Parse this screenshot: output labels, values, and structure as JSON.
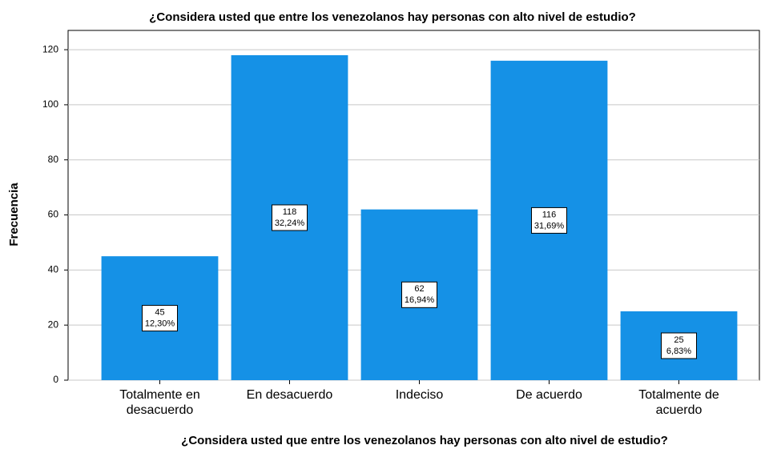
{
  "chart_data": {
    "type": "bar",
    "title": "¿Considera usted que entre los venezolanos hay personas con alto nivel de estudio?",
    "x_label": "¿Considera usted que entre los venezolanos hay personas con alto nivel de estudio?",
    "y_label": "Frecuencia",
    "categories": [
      "Totalmente en desacuerdo",
      "En desacuerdo",
      "Indeciso",
      "De acuerdo",
      "Totalmente de acuerdo"
    ],
    "values": [
      45,
      118,
      62,
      116,
      25
    ],
    "percent_labels": [
      "12,30%",
      "32,24%",
      "16,94%",
      "31,69%",
      "6,83%"
    ],
    "color": "#1591e6",
    "ylim": [
      0,
      127
    ],
    "yticks": [
      0,
      20,
      40,
      60,
      80,
      100,
      120
    ],
    "grid": true
  }
}
